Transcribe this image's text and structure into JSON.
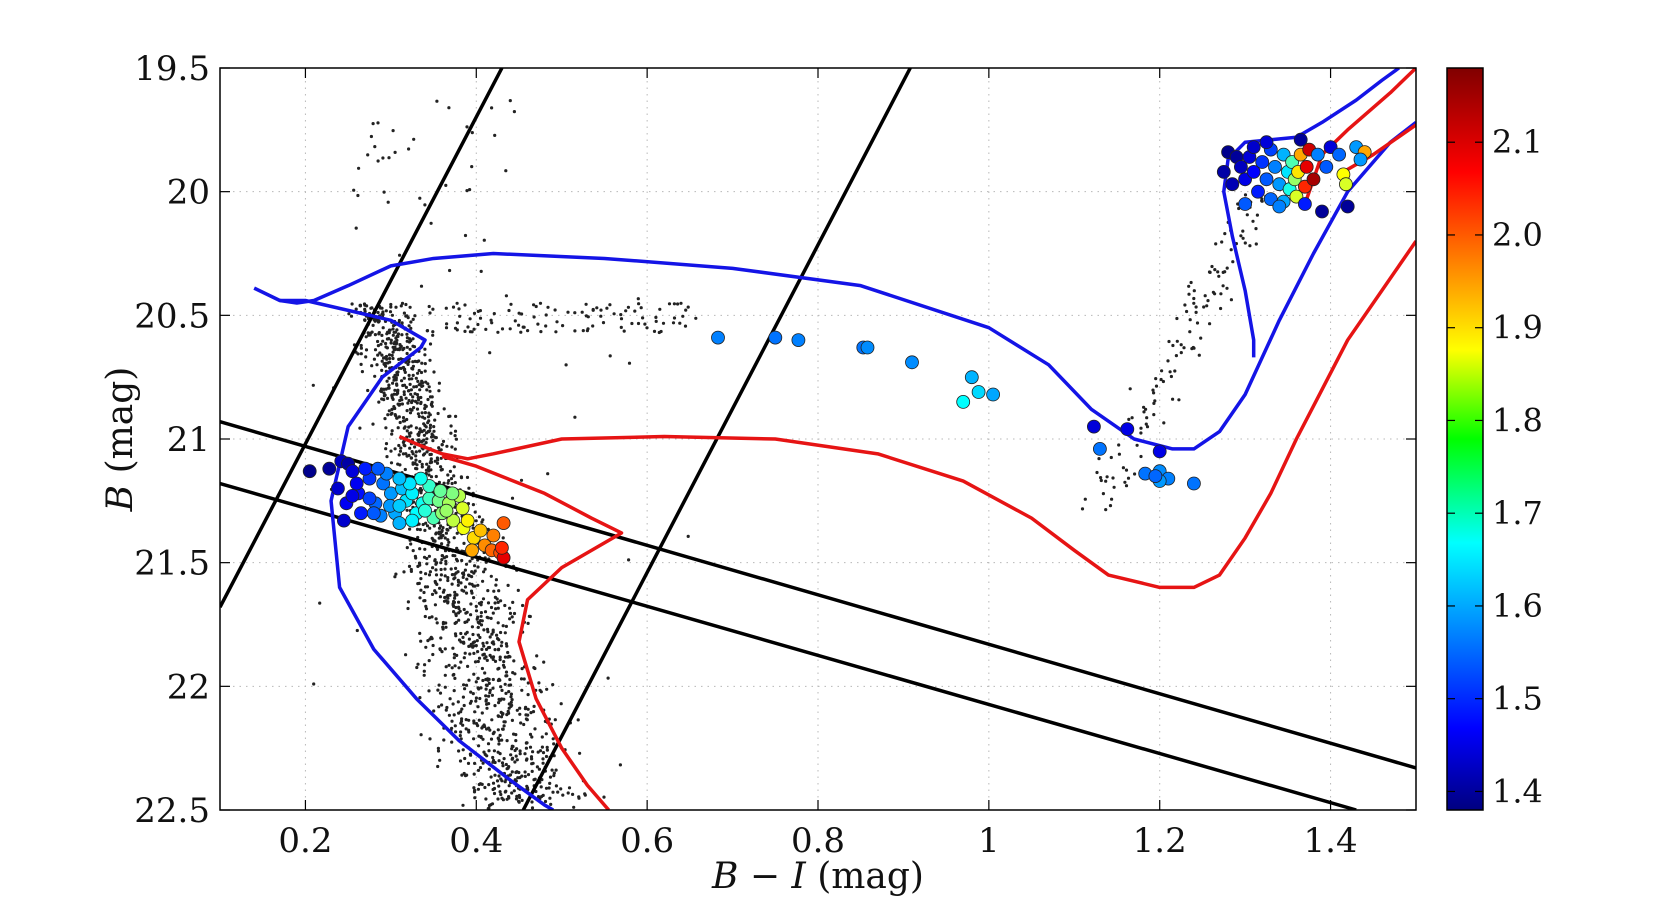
{
  "chart_data": {
    "type": "scatter",
    "xlabel": {
      "var": "B − I",
      "unit": "(mag)"
    },
    "ylabel": {
      "var": "B",
      "unit": "(mag)"
    },
    "xlim": [
      0.1,
      1.5
    ],
    "ylim": [
      19.5,
      22.5
    ],
    "y_inverted": true,
    "grid": true,
    "x_ticks": [
      0.2,
      0.4,
      0.6,
      0.8,
      1,
      1.2,
      1.4
    ],
    "x_tick_labels": [
      "0.2",
      "0.4",
      "0.6",
      "0.8",
      "1",
      "1.2",
      "1.4"
    ],
    "y_ticks": [
      19.5,
      20,
      20.5,
      21,
      21.5,
      22,
      22.5
    ],
    "y_tick_labels": [
      "19.5",
      "20",
      "20.5",
      "21",
      "21.5",
      "22",
      "22.5"
    ],
    "colorbar": {
      "range": [
        1.38,
        2.18
      ],
      "ticks": [
        1.4,
        1.5,
        1.6,
        1.7,
        1.8,
        1.9,
        2.0,
        2.1
      ],
      "tick_labels": [
        "1.4",
        "1.5",
        "1.6",
        "1.7",
        "1.8",
        "1.9",
        "2.0",
        "2.1"
      ],
      "colormap": "jet"
    },
    "isochrones": [
      {
        "name": "blue isochrone",
        "color": "#1414e6",
        "points": [
          [
            0.14,
            20.39
          ],
          [
            0.17,
            20.44
          ],
          [
            0.19,
            20.45
          ],
          [
            0.21,
            20.44
          ],
          [
            0.25,
            20.38
          ],
          [
            0.3,
            20.3
          ],
          [
            0.35,
            20.27
          ],
          [
            0.42,
            20.25
          ],
          [
            0.55,
            20.27
          ],
          [
            0.7,
            20.31
          ],
          [
            0.85,
            20.38
          ],
          [
            1.0,
            20.55
          ],
          [
            1.07,
            20.7
          ],
          [
            1.12,
            20.88
          ],
          [
            1.17,
            21.0
          ],
          [
            1.215,
            21.04
          ],
          [
            1.24,
            21.04
          ],
          [
            1.27,
            20.97
          ],
          [
            1.3,
            20.82
          ],
          [
            1.34,
            20.52
          ],
          [
            1.38,
            20.25
          ],
          [
            1.42,
            20.0
          ],
          [
            1.47,
            19.8
          ],
          [
            1.5,
            19.72
          ]
        ]
      },
      {
        "name": "blue isochrone lower branch",
        "color": "#1414e6",
        "points": [
          [
            0.17,
            20.44
          ],
          [
            0.2,
            20.44
          ],
          [
            0.3,
            20.52
          ],
          [
            0.34,
            20.6
          ],
          [
            0.335,
            20.63
          ],
          [
            0.29,
            20.75
          ],
          [
            0.25,
            20.95
          ],
          [
            0.23,
            21.25
          ],
          [
            0.24,
            21.6
          ],
          [
            0.28,
            21.85
          ],
          [
            0.33,
            22.05
          ],
          [
            0.38,
            22.22
          ],
          [
            0.44,
            22.38
          ],
          [
            0.48,
            22.48
          ],
          [
            0.49,
            22.5
          ]
        ]
      },
      {
        "name": "blue isochrone giant branch",
        "color": "#1414e6",
        "points": [
          [
            1.31,
            20.67
          ],
          [
            1.31,
            20.6
          ],
          [
            1.3,
            20.4
          ],
          [
            1.285,
            20.18
          ],
          [
            1.275,
            20.0
          ],
          [
            1.28,
            19.87
          ],
          [
            1.3,
            19.8
          ],
          [
            1.33,
            19.79
          ],
          [
            1.36,
            19.78
          ],
          [
            1.39,
            19.72
          ],
          [
            1.43,
            19.63
          ],
          [
            1.46,
            19.55
          ],
          [
            1.48,
            19.5
          ]
        ]
      },
      {
        "name": "red isochrone",
        "color": "#e61414",
        "points": [
          [
            0.31,
            20.99
          ],
          [
            0.33,
            21.02
          ],
          [
            0.36,
            21.06
          ],
          [
            0.39,
            21.08
          ],
          [
            0.42,
            21.06
          ],
          [
            0.5,
            21.0
          ],
          [
            0.62,
            20.99
          ],
          [
            0.75,
            21.0
          ],
          [
            0.87,
            21.06
          ],
          [
            0.97,
            21.17
          ],
          [
            1.05,
            21.32
          ],
          [
            1.1,
            21.45
          ],
          [
            1.14,
            21.55
          ],
          [
            1.2,
            21.6
          ],
          [
            1.24,
            21.6
          ],
          [
            1.27,
            21.55
          ],
          [
            1.3,
            21.4
          ],
          [
            1.33,
            21.22
          ],
          [
            1.36,
            21.0
          ],
          [
            1.39,
            20.8
          ],
          [
            1.42,
            20.6
          ],
          [
            1.46,
            20.4
          ],
          [
            1.5,
            20.2
          ]
        ]
      },
      {
        "name": "red isochrone lower branch",
        "color": "#e61414",
        "points": [
          [
            0.36,
            21.07
          ],
          [
            0.4,
            21.11
          ],
          [
            0.48,
            21.22
          ],
          [
            0.535,
            21.32
          ],
          [
            0.57,
            21.38
          ],
          [
            0.55,
            21.42
          ],
          [
            0.5,
            21.52
          ],
          [
            0.46,
            21.65
          ],
          [
            0.45,
            21.82
          ],
          [
            0.47,
            22.05
          ],
          [
            0.5,
            22.25
          ],
          [
            0.53,
            22.4
          ],
          [
            0.555,
            22.5
          ]
        ]
      },
      {
        "name": "red isochrone giant branch",
        "color": "#e61414",
        "points": [
          [
            1.37,
            20.05
          ],
          [
            1.38,
            19.95
          ],
          [
            1.39,
            19.85
          ],
          [
            1.42,
            19.75
          ],
          [
            1.47,
            19.6
          ],
          [
            1.5,
            19.5
          ]
        ]
      },
      {
        "name": "red isochrone giant tip",
        "color": "#e61414",
        "points": [
          [
            1.41,
            19.93
          ],
          [
            1.45,
            19.85
          ],
          [
            1.5,
            19.73
          ]
        ]
      }
    ],
    "selection_lines": [
      {
        "name": "left color cut",
        "points": [
          [
            0.1,
            21.68
          ],
          [
            0.43,
            19.5
          ]
        ]
      },
      {
        "name": "right color cut",
        "points": [
          [
            0.455,
            22.5
          ],
          [
            0.908,
            19.5
          ]
        ]
      },
      {
        "name": "upper main-sequence boundary",
        "points": [
          [
            0.1,
            20.93
          ],
          [
            1.5,
            22.33
          ]
        ]
      },
      {
        "name": "lower main-sequence boundary",
        "points": [
          [
            0.1,
            21.18
          ],
          [
            1.43,
            22.5
          ]
        ]
      }
    ],
    "colored_stars": [
      {
        "x": 0.205,
        "y": 21.13,
        "c": 1.39
      },
      {
        "x": 0.228,
        "y": 21.12,
        "c": 1.4
      },
      {
        "x": 0.242,
        "y": 21.09,
        "c": 1.43
      },
      {
        "x": 0.25,
        "y": 21.1,
        "c": 1.41
      },
      {
        "x": 0.255,
        "y": 21.13,
        "c": 1.45
      },
      {
        "x": 0.238,
        "y": 21.2,
        "c": 1.44
      },
      {
        "x": 0.262,
        "y": 21.22,
        "c": 1.49
      },
      {
        "x": 0.248,
        "y": 21.26,
        "c": 1.47
      },
      {
        "x": 0.275,
        "y": 21.16,
        "c": 1.52
      },
      {
        "x": 0.265,
        "y": 21.3,
        "c": 1.5
      },
      {
        "x": 0.282,
        "y": 21.26,
        "c": 1.56
      },
      {
        "x": 0.291,
        "y": 21.18,
        "c": 1.57
      },
      {
        "x": 0.3,
        "y": 21.22,
        "c": 1.6
      },
      {
        "x": 0.288,
        "y": 21.31,
        "c": 1.58
      },
      {
        "x": 0.305,
        "y": 21.3,
        "c": 1.61
      },
      {
        "x": 0.313,
        "y": 21.2,
        "c": 1.63
      },
      {
        "x": 0.318,
        "y": 21.25,
        "c": 1.66
      },
      {
        "x": 0.325,
        "y": 21.22,
        "c": 1.67
      },
      {
        "x": 0.33,
        "y": 21.3,
        "c": 1.68
      },
      {
        "x": 0.337,
        "y": 21.26,
        "c": 1.69
      },
      {
        "x": 0.345,
        "y": 21.24,
        "c": 1.73
      },
      {
        "x": 0.35,
        "y": 21.32,
        "c": 1.74
      },
      {
        "x": 0.356,
        "y": 21.25,
        "c": 1.77
      },
      {
        "x": 0.36,
        "y": 21.3,
        "c": 1.79
      },
      {
        "x": 0.368,
        "y": 21.26,
        "c": 1.81
      },
      {
        "x": 0.373,
        "y": 21.33,
        "c": 1.83
      },
      {
        "x": 0.38,
        "y": 21.23,
        "c": 1.82
      },
      {
        "x": 0.385,
        "y": 21.36,
        "c": 1.87
      },
      {
        "x": 0.39,
        "y": 21.33,
        "c": 1.89
      },
      {
        "x": 0.397,
        "y": 21.4,
        "c": 1.91
      },
      {
        "x": 0.405,
        "y": 21.37,
        "c": 1.93
      },
      {
        "x": 0.395,
        "y": 21.45,
        "c": 1.95
      },
      {
        "x": 0.41,
        "y": 21.43,
        "c": 1.97
      },
      {
        "x": 0.418,
        "y": 21.45,
        "c": 2.0
      },
      {
        "x": 0.42,
        "y": 21.39,
        "c": 1.98
      },
      {
        "x": 0.428,
        "y": 21.46,
        "c": 2.02
      },
      {
        "x": 0.432,
        "y": 21.34,
        "c": 2.01
      },
      {
        "x": 0.432,
        "y": 21.48,
        "c": 2.1
      },
      {
        "x": 0.43,
        "y": 21.44,
        "c": 2.05
      },
      {
        "x": 0.384,
        "y": 21.28,
        "c": 1.85
      },
      {
        "x": 0.365,
        "y": 21.29,
        "c": 1.8
      },
      {
        "x": 0.372,
        "y": 21.22,
        "c": 1.78
      },
      {
        "x": 0.345,
        "y": 21.19,
        "c": 1.72
      },
      {
        "x": 0.335,
        "y": 21.16,
        "c": 1.69
      },
      {
        "x": 0.322,
        "y": 21.18,
        "c": 1.66
      },
      {
        "x": 0.31,
        "y": 21.16,
        "c": 1.63
      },
      {
        "x": 0.295,
        "y": 21.14,
        "c": 1.58
      },
      {
        "x": 0.285,
        "y": 21.12,
        "c": 1.55
      },
      {
        "x": 0.27,
        "y": 21.12,
        "c": 1.5
      },
      {
        "x": 0.26,
        "y": 21.18,
        "c": 1.47
      },
      {
        "x": 0.275,
        "y": 21.24,
        "c": 1.53
      },
      {
        "x": 0.299,
        "y": 21.27,
        "c": 1.6
      },
      {
        "x": 0.31,
        "y": 21.34,
        "c": 1.62
      },
      {
        "x": 0.325,
        "y": 21.33,
        "c": 1.67
      },
      {
        "x": 0.34,
        "y": 21.29,
        "c": 1.71
      },
      {
        "x": 0.31,
        "y": 21.27,
        "c": 1.64
      },
      {
        "x": 0.28,
        "y": 21.3,
        "c": 1.55
      },
      {
        "x": 0.255,
        "y": 21.23,
        "c": 1.46
      },
      {
        "x": 0.245,
        "y": 21.33,
        "c": 1.44
      },
      {
        "x": 0.358,
        "y": 21.21,
        "c": 1.76
      },
      {
        "x": 0.683,
        "y": 20.59,
        "c": 1.58
      },
      {
        "x": 0.75,
        "y": 20.59,
        "c": 1.57
      },
      {
        "x": 0.777,
        "y": 20.6,
        "c": 1.58
      },
      {
        "x": 0.853,
        "y": 20.63,
        "c": 1.57
      },
      {
        "x": 0.858,
        "y": 20.63,
        "c": 1.59
      },
      {
        "x": 0.91,
        "y": 20.69,
        "c": 1.59
      },
      {
        "x": 0.98,
        "y": 20.75,
        "c": 1.62
      },
      {
        "x": 0.988,
        "y": 20.81,
        "c": 1.65
      },
      {
        "x": 0.97,
        "y": 20.85,
        "c": 1.68
      },
      {
        "x": 1.005,
        "y": 20.82,
        "c": 1.61
      },
      {
        "x": 1.123,
        "y": 20.95,
        "c": 1.45
      },
      {
        "x": 1.162,
        "y": 20.96,
        "c": 1.46
      },
      {
        "x": 1.13,
        "y": 21.04,
        "c": 1.57
      },
      {
        "x": 1.2,
        "y": 21.05,
        "c": 1.46
      },
      {
        "x": 1.183,
        "y": 21.14,
        "c": 1.57
      },
      {
        "x": 1.2,
        "y": 21.13,
        "c": 1.59
      },
      {
        "x": 1.21,
        "y": 21.16,
        "c": 1.58
      },
      {
        "x": 1.2,
        "y": 21.17,
        "c": 1.6
      },
      {
        "x": 1.24,
        "y": 21.18,
        "c": 1.57
      },
      {
        "x": 1.195,
        "y": 21.15,
        "c": 1.56
      },
      {
        "x": 1.28,
        "y": 19.84,
        "c": 1.39
      },
      {
        "x": 1.29,
        "y": 19.86,
        "c": 1.4
      },
      {
        "x": 1.275,
        "y": 19.92,
        "c": 1.41
      },
      {
        "x": 1.285,
        "y": 19.97,
        "c": 1.42
      },
      {
        "x": 1.295,
        "y": 19.9,
        "c": 1.43
      },
      {
        "x": 1.3,
        "y": 19.95,
        "c": 1.46
      },
      {
        "x": 1.305,
        "y": 19.86,
        "c": 1.45
      },
      {
        "x": 1.31,
        "y": 19.92,
        "c": 1.48
      },
      {
        "x": 1.315,
        "y": 20.0,
        "c": 1.5
      },
      {
        "x": 1.32,
        "y": 19.88,
        "c": 1.52
      },
      {
        "x": 1.325,
        "y": 19.95,
        "c": 1.55
      },
      {
        "x": 1.33,
        "y": 19.83,
        "c": 1.53
      },
      {
        "x": 1.33,
        "y": 20.03,
        "c": 1.56
      },
      {
        "x": 1.335,
        "y": 19.9,
        "c": 1.58
      },
      {
        "x": 1.34,
        "y": 19.97,
        "c": 1.6
      },
      {
        "x": 1.345,
        "y": 19.85,
        "c": 1.62
      },
      {
        "x": 1.345,
        "y": 20.04,
        "c": 1.61
      },
      {
        "x": 1.35,
        "y": 19.92,
        "c": 1.66
      },
      {
        "x": 1.352,
        "y": 19.99,
        "c": 1.7
      },
      {
        "x": 1.355,
        "y": 19.88,
        "c": 1.74
      },
      {
        "x": 1.358,
        "y": 19.95,
        "c": 1.8
      },
      {
        "x": 1.36,
        "y": 20.02,
        "c": 1.85
      },
      {
        "x": 1.362,
        "y": 19.92,
        "c": 1.9
      },
      {
        "x": 1.365,
        "y": 19.85,
        "c": 1.95
      },
      {
        "x": 1.37,
        "y": 19.98,
        "c": 2.05
      },
      {
        "x": 1.372,
        "y": 19.9,
        "c": 2.1
      },
      {
        "x": 1.375,
        "y": 19.83,
        "c": 2.12
      },
      {
        "x": 1.38,
        "y": 19.95,
        "c": 2.15
      },
      {
        "x": 1.385,
        "y": 19.85,
        "c": 1.58
      },
      {
        "x": 1.395,
        "y": 19.9,
        "c": 1.55
      },
      {
        "x": 1.4,
        "y": 19.82,
        "c": 1.45
      },
      {
        "x": 1.41,
        "y": 19.85,
        "c": 1.56
      },
      {
        "x": 1.415,
        "y": 19.93,
        "c": 1.88
      },
      {
        "x": 1.418,
        "y": 19.97,
        "c": 1.85
      },
      {
        "x": 1.43,
        "y": 19.82,
        "c": 1.6
      },
      {
        "x": 1.44,
        "y": 19.84,
        "c": 1.95
      },
      {
        "x": 1.435,
        "y": 19.87,
        "c": 1.6
      },
      {
        "x": 1.42,
        "y": 20.06,
        "c": 1.4
      },
      {
        "x": 1.39,
        "y": 20.08,
        "c": 1.4
      },
      {
        "x": 1.3,
        "y": 20.05,
        "c": 1.55
      },
      {
        "x": 1.34,
        "y": 20.06,
        "c": 1.58
      },
      {
        "x": 1.325,
        "y": 19.8,
        "c": 1.45
      },
      {
        "x": 1.31,
        "y": 19.82,
        "c": 1.44
      },
      {
        "x": 1.365,
        "y": 19.79,
        "c": 1.4
      },
      {
        "x": 1.37,
        "y": 20.05,
        "c": 1.5
      }
    ]
  }
}
